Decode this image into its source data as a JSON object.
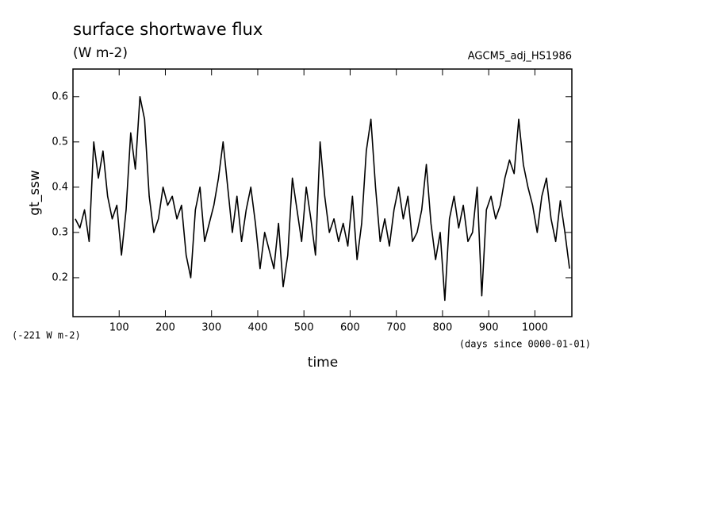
{
  "chart_data": {
    "type": "line",
    "title": "surface shortwave flux",
    "subtitle": "(W m-2)",
    "annotation_right": "AGCM5_adj_HS1986",
    "offset_label": "(-221 W m-2)",
    "x_units": "(days since 0000-01-01)",
    "x_label": "time",
    "y_label": "gt_ssw",
    "xlim": [
      0,
      1080
    ],
    "ylim": [
      0.114,
      0.661
    ],
    "xticks": [
      100,
      200,
      300,
      400,
      500,
      600,
      700,
      800,
      900,
      1000
    ],
    "yticks": [
      0.2,
      0.3,
      0.4,
      0.5,
      0.6
    ],
    "x": [
      5,
      15,
      25,
      35,
      45,
      55,
      65,
      75,
      85,
      95,
      105,
      115,
      125,
      135,
      145,
      155,
      165,
      175,
      185,
      195,
      205,
      215,
      225,
      235,
      245,
      255,
      265,
      275,
      285,
      295,
      305,
      315,
      325,
      335,
      345,
      355,
      365,
      375,
      385,
      395,
      405,
      415,
      425,
      435,
      445,
      455,
      465,
      475,
      485,
      495,
      505,
      515,
      525,
      535,
      545,
      555,
      565,
      575,
      585,
      595,
      605,
      615,
      625,
      635,
      645,
      655,
      665,
      675,
      685,
      695,
      705,
      715,
      725,
      735,
      745,
      755,
      765,
      775,
      785,
      795,
      805,
      815,
      825,
      835,
      845,
      855,
      865,
      875,
      885,
      895,
      905,
      915,
      925,
      935,
      945,
      955,
      965,
      975,
      985,
      995,
      1005,
      1015,
      1025,
      1035,
      1045,
      1055,
      1065,
      1075
    ],
    "series": [
      {
        "color": "#000000",
        "values": [
          0.33,
          0.31,
          0.35,
          0.28,
          0.5,
          0.42,
          0.48,
          0.38,
          0.33,
          0.36,
          0.25,
          0.35,
          0.52,
          0.44,
          0.6,
          0.55,
          0.38,
          0.3,
          0.33,
          0.4,
          0.36,
          0.38,
          0.33,
          0.36,
          0.25,
          0.2,
          0.35,
          0.4,
          0.28,
          0.32,
          0.36,
          0.42,
          0.5,
          0.4,
          0.3,
          0.38,
          0.28,
          0.35,
          0.4,
          0.32,
          0.22,
          0.3,
          0.26,
          0.22,
          0.32,
          0.18,
          0.25,
          0.42,
          0.35,
          0.28,
          0.4,
          0.33,
          0.25,
          0.5,
          0.38,
          0.3,
          0.33,
          0.28,
          0.32,
          0.27,
          0.38,
          0.24,
          0.32,
          0.48,
          0.55,
          0.4,
          0.28,
          0.33,
          0.27,
          0.35,
          0.4,
          0.33,
          0.38,
          0.28,
          0.3,
          0.35,
          0.45,
          0.32,
          0.24,
          0.3,
          0.15,
          0.33,
          0.38,
          0.31,
          0.36,
          0.28,
          0.3,
          0.4,
          0.16,
          0.35,
          0.38,
          0.33,
          0.36,
          0.42,
          0.46,
          0.43,
          0.55,
          0.45,
          0.4,
          0.36,
          0.3,
          0.38,
          0.42,
          0.33,
          0.28,
          0.37,
          0.3,
          0.22
        ]
      }
    ]
  }
}
